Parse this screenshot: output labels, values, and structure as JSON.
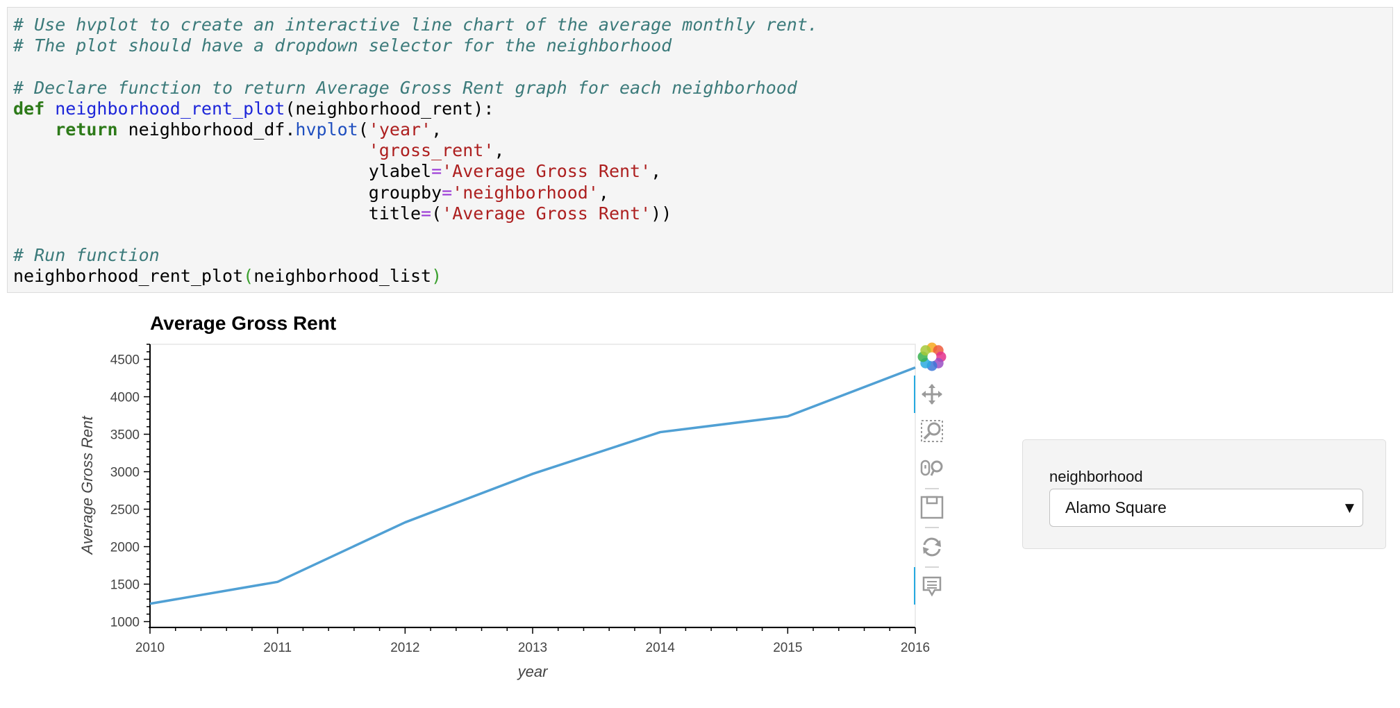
{
  "code_cell": {
    "comments": {
      "line1": "# Use hvplot to create an interactive line chart of the average monthly rent.",
      "line2": "# The plot should have a dropdown selector for the neighborhood",
      "line4": "# Declare function to return Average Gross Rent graph for each neighborhood",
      "line11": "# Run function"
    },
    "tokens": {
      "def_kw": "def",
      "func_name": "neighborhood_rent_plot",
      "func_params": "(neighborhood_rent):",
      "return_kw": "return",
      "df_name": "neighborhood_df.",
      "method_name": "hvplot",
      "open_paren": "(",
      "arg_year": "'year'",
      "comma": ",",
      "arg_gross_rent": "'gross_rent'",
      "kw_ylabel": "ylabel",
      "eq": "=",
      "val_ylabel": "'Average Gross Rent'",
      "kw_groupby": "groupby",
      "val_groupby": "'neighborhood'",
      "kw_title": "title",
      "val_title": "'Average Gross Rent'",
      "close_parens": "))",
      "call_name": "neighborhood_rent_plot",
      "call_arg": "neighborhood_list",
      "close_paren": ")"
    }
  },
  "chart_data": {
    "type": "line",
    "title": "Average Gross Rent",
    "xlabel": "year",
    "ylabel": "Average Gross Rent",
    "x": [
      2010,
      2011,
      2012,
      2013,
      2014,
      2015,
      2016
    ],
    "series": [
      {
        "name": "Alamo Square",
        "values": [
          1239,
          1530,
          2324,
          2971,
          3528,
          3739,
          4390
        ],
        "color": "#50a0d4"
      }
    ],
    "xlim": [
      2010,
      2016
    ],
    "ylim": [
      940,
      4700
    ],
    "yticks": [
      1000,
      1500,
      2000,
      2500,
      3000,
      3500,
      4000,
      4500
    ],
    "xticks": [
      2010,
      2011,
      2012,
      2013,
      2014,
      2015,
      2016
    ],
    "grid": false
  },
  "toolbar": {
    "icons": [
      "bokeh-logo-icon",
      "pan-icon",
      "box-zoom-icon",
      "wheel-zoom-icon",
      "save-icon",
      "reset-icon",
      "hover-icon"
    ],
    "active_color": "#26aae1"
  },
  "widget": {
    "label": "neighborhood",
    "selected": "Alamo Square",
    "arrow": "▼"
  }
}
